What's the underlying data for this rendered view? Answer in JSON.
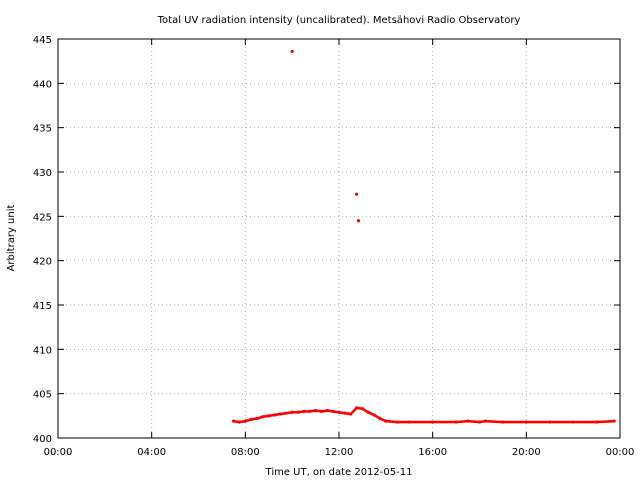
{
  "chart_data": {
    "type": "scatter",
    "title": "Total UV radiation intensity (uncalibrated). Metsähovi Radio Observatory",
    "xlabel": "Time UT, on date 2012-05-11",
    "ylabel": "Arbitrary unit",
    "xlim": [
      "00:00",
      "24:00"
    ],
    "ylim": [
      400,
      445
    ],
    "x_ticks": [
      "00:00",
      "04:00",
      "08:00",
      "12:00",
      "16:00",
      "20:00",
      "00:00"
    ],
    "y_ticks": [
      "400",
      "405",
      "410",
      "415",
      "420",
      "425",
      "430",
      "435",
      "440",
      "445"
    ],
    "grid": true,
    "series": [
      {
        "color": "#ff0000",
        "marker": "dot",
        "points": [
          [
            "07:30",
            401.9
          ],
          [
            "07:45",
            401.8
          ],
          [
            "08:00",
            401.9
          ],
          [
            "08:15",
            402.1
          ],
          [
            "08:30",
            402.2
          ],
          [
            "08:45",
            402.4
          ],
          [
            "09:00",
            402.5
          ],
          [
            "09:15",
            402.6
          ],
          [
            "09:30",
            402.7
          ],
          [
            "09:45",
            402.8
          ],
          [
            "10:00",
            402.9
          ],
          [
            "10:15",
            402.9
          ],
          [
            "10:30",
            403.0
          ],
          [
            "10:45",
            403.0
          ],
          [
            "11:00",
            403.1
          ],
          [
            "11:15",
            403.0
          ],
          [
            "11:30",
            403.1
          ],
          [
            "11:45",
            403.0
          ],
          [
            "12:00",
            402.9
          ],
          [
            "12:15",
            402.8
          ],
          [
            "12:30",
            402.7
          ],
          [
            "12:45",
            403.4
          ],
          [
            "13:00",
            403.3
          ],
          [
            "13:15",
            402.9
          ],
          [
            "13:30",
            402.6
          ],
          [
            "13:45",
            402.2
          ],
          [
            "14:00",
            401.9
          ],
          [
            "14:30",
            401.8
          ],
          [
            "15:00",
            401.8
          ],
          [
            "16:00",
            401.8
          ],
          [
            "17:00",
            401.8
          ],
          [
            "17:30",
            401.9
          ],
          [
            "18:00",
            401.8
          ],
          [
            "18:15",
            401.9
          ],
          [
            "19:00",
            401.8
          ],
          [
            "20:00",
            401.8
          ],
          [
            "21:00",
            401.8
          ],
          [
            "22:00",
            401.8
          ],
          [
            "23:00",
            401.8
          ],
          [
            "23:45",
            401.9
          ]
        ],
        "outliers": [
          [
            "10:00",
            443.6
          ],
          [
            "12:45",
            427.5
          ],
          [
            "12:50",
            424.5
          ]
        ]
      }
    ]
  }
}
